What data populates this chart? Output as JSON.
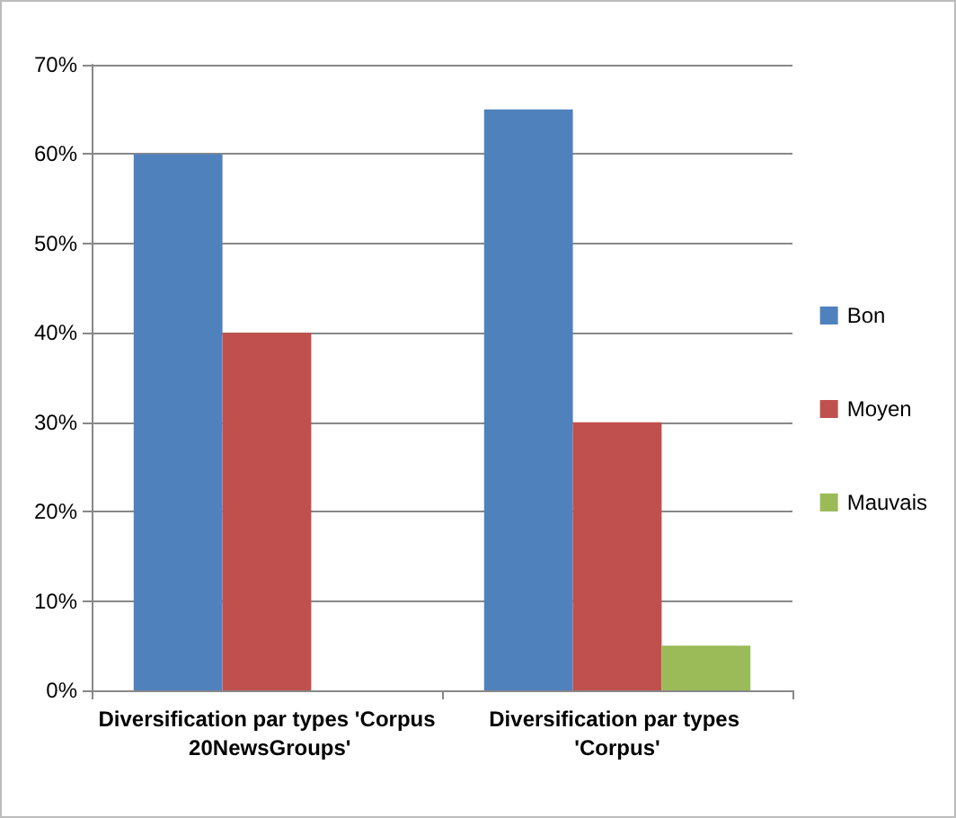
{
  "chart_data": {
    "type": "bar",
    "categories": [
      "Diversification par types 'Corpus 20NewsGroups'",
      "Diversification par types 'Corpus'"
    ],
    "series": [
      {
        "name": "Bon",
        "color": "#4f81bd",
        "values": [
          60,
          65
        ]
      },
      {
        "name": "Moyen",
        "color": "#c0504d",
        "values": [
          40,
          30
        ]
      },
      {
        "name": "Mauvais",
        "color": "#9bbb59",
        "values": [
          0,
          5
        ]
      }
    ],
    "ylim": [
      0,
      70
    ],
    "yticks": [
      {
        "value": 0,
        "label": "0%"
      },
      {
        "value": 10,
        "label": "10%"
      },
      {
        "value": 20,
        "label": "20%"
      },
      {
        "value": 30,
        "label": "30%"
      },
      {
        "value": 40,
        "label": "40%"
      },
      {
        "value": 50,
        "label": "50%"
      },
      {
        "value": 60,
        "label": "60%"
      },
      {
        "value": 70,
        "label": "70%"
      }
    ],
    "grid": true,
    "legend": "right"
  }
}
